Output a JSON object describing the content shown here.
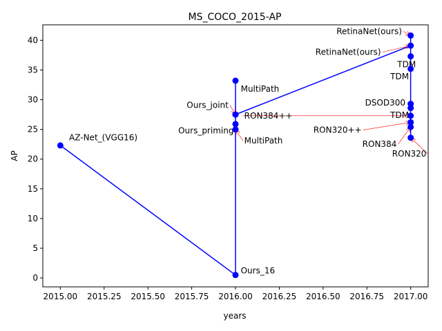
{
  "chart_data": {
    "type": "line",
    "title": "MS_COCO_2015-AP",
    "xlabel": "years",
    "ylabel": "AP",
    "xlim": [
      2014.9,
      2017.1
    ],
    "ylim": [
      -1.5,
      42.6
    ],
    "grid": false,
    "x_ticks": [
      2015.0,
      2015.25,
      2015.5,
      2015.75,
      2016.0,
      2016.25,
      2016.5,
      2016.75,
      2017.0
    ],
    "x_tick_labels": [
      "2015.00",
      "2015.25",
      "2015.50",
      "2015.75",
      "2016.00",
      "2016.25",
      "2016.50",
      "2016.75",
      "2017.00"
    ],
    "y_ticks": [
      0,
      5,
      10,
      15,
      20,
      25,
      30,
      35,
      40
    ],
    "y_tick_labels": [
      "0",
      "5",
      "10",
      "15",
      "20",
      "25",
      "30",
      "35",
      "40"
    ],
    "color": "#0000ff",
    "arrow_color": "#ff0000",
    "series": [
      {
        "points": [
          {
            "x": 2015.0,
            "y": 22.3
          },
          {
            "x": 2016.0,
            "y": 0.5
          },
          {
            "x": 2016.0,
            "y": 25.0
          },
          {
            "x": 2016.0,
            "y": 25.9
          },
          {
            "x": 2016.0,
            "y": 27.5
          },
          {
            "x": 2016.0,
            "y": 33.2
          },
          {
            "x": 2016.0,
            "y": 27.5
          },
          {
            "x": 2017.0,
            "y": 39.1
          },
          {
            "x": 2017.0,
            "y": 40.8
          },
          {
            "x": 2017.0,
            "y": 37.3
          },
          {
            "x": 2017.0,
            "y": 35.2
          },
          {
            "x": 2017.0,
            "y": 29.3
          },
          {
            "x": 2017.0,
            "y": 28.6
          },
          {
            "x": 2017.0,
            "y": 27.3
          },
          {
            "x": 2017.0,
            "y": 26.2
          },
          {
            "x": 2017.0,
            "y": 25.4
          },
          {
            "x": 2017.0,
            "y": 23.6
          }
        ]
      }
    ],
    "annotations": [
      {
        "text": "AZ-Net_(VGG16)",
        "x": 2015.0,
        "y": 22.3,
        "tx": 2015.05,
        "ty": 23.6,
        "ha": "start",
        "arrow": false
      },
      {
        "text": "Ours_16",
        "x": 2016.0,
        "y": 0.5,
        "tx": 2016.03,
        "ty": 1.2,
        "ha": "start",
        "arrow": false
      },
      {
        "text": "MultiPath",
        "x": 2016.0,
        "y": 33.2,
        "tx": 2016.03,
        "ty": 31.8,
        "ha": "start",
        "arrow": false
      },
      {
        "text": "Ours_joint",
        "x": 2016.0,
        "y": 27.5,
        "tx": 2015.96,
        "ty": 29.1,
        "ha": "end",
        "arrow": true
      },
      {
        "text": "RON384++",
        "x": 2017.0,
        "y": 27.3,
        "tx": 2016.05,
        "ty": 27.3,
        "ha": "start",
        "arrow": true
      },
      {
        "text": "Ours_priming",
        "x": 2016.0,
        "y": 25.9,
        "tx": 2015.99,
        "ty": 24.8,
        "ha": "end",
        "arrow": true
      },
      {
        "text": "MultiPath",
        "x": 2016.0,
        "y": 25.0,
        "tx": 2016.05,
        "ty": 23.1,
        "ha": "start",
        "arrow": true
      },
      {
        "text": "RetinaNet(ours)",
        "x": 2017.0,
        "y": 40.8,
        "tx": 2016.95,
        "ty": 41.5,
        "ha": "end",
        "arrow": true
      },
      {
        "text": "RetinaNet(ours)",
        "x": 2017.0,
        "y": 39.1,
        "tx": 2016.83,
        "ty": 38.0,
        "ha": "end",
        "arrow": true
      },
      {
        "text": "TDM",
        "x": 2017.0,
        "y": 37.3,
        "tx": 2017.03,
        "ty": 35.9,
        "ha": "end",
        "arrow": false
      },
      {
        "text": "TDM",
        "x": 2017.0,
        "y": 35.2,
        "tx": 2016.99,
        "ty": 33.9,
        "ha": "end",
        "arrow": false
      },
      {
        "text": "DSOD300",
        "x": 2017.0,
        "y": 29.3,
        "tx": 2016.97,
        "ty": 29.5,
        "ha": "end",
        "arrow": false
      },
      {
        "text": "TDM",
        "x": 2017.0,
        "y": 28.6,
        "tx": 2016.99,
        "ty": 27.4,
        "ha": "end",
        "arrow": false
      },
      {
        "text": "RON320++",
        "x": 2017.0,
        "y": 26.2,
        "tx": 2016.72,
        "ty": 24.9,
        "ha": "end",
        "arrow": true
      },
      {
        "text": "RON384",
        "x": 2017.0,
        "y": 25.4,
        "tx": 2016.92,
        "ty": 22.5,
        "ha": "end",
        "arrow": true
      },
      {
        "text": "RON320",
        "x": 2017.0,
        "y": 23.6,
        "tx": 2017.09,
        "ty": 20.9,
        "ha": "end",
        "arrow": true
      }
    ]
  }
}
